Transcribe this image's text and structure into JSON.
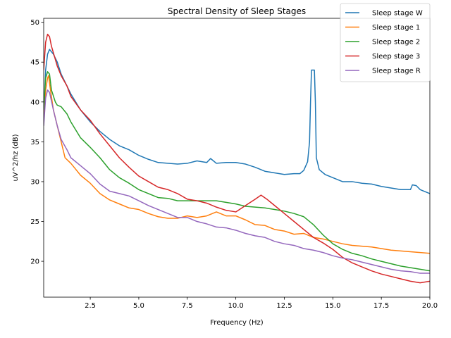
{
  "chart_data": {
    "type": "line",
    "title": "Spectral Density of Sleep Stages",
    "xlabel": "Frequency (Hz)",
    "ylabel": "uV^2/hz (dB)",
    "xlim": [
      0.1,
      20.0
    ],
    "ylim": [
      15.5,
      50.5
    ],
    "x_ticks": [
      2.5,
      5.0,
      7.5,
      10.0,
      12.5,
      15.0,
      17.5,
      20.0
    ],
    "x_tick_labels": [
      "2.5",
      "5.0",
      "7.5",
      "10.0",
      "12.5",
      "15.0",
      "17.5",
      "20.0"
    ],
    "y_ticks": [
      20,
      25,
      30,
      35,
      40,
      45,
      50
    ],
    "y_tick_labels": [
      "20",
      "25",
      "30",
      "35",
      "40",
      "45",
      "50"
    ],
    "grid": false,
    "legend_position": "top-right",
    "series": [
      {
        "name": "Sleep stage W",
        "color": "#1f77b4",
        "points": [
          [
            0.1,
            38.0
          ],
          [
            0.2,
            44.0
          ],
          [
            0.3,
            46.0
          ],
          [
            0.4,
            46.6
          ],
          [
            0.6,
            46.0
          ],
          [
            0.8,
            45.0
          ],
          [
            1.0,
            43.5
          ],
          [
            1.5,
            41.0
          ],
          [
            2.0,
            39.0
          ],
          [
            2.5,
            37.5
          ],
          [
            3.0,
            36.3
          ],
          [
            3.5,
            35.3
          ],
          [
            4.0,
            34.5
          ],
          [
            4.5,
            34.0
          ],
          [
            5.0,
            33.3
          ],
          [
            5.5,
            32.8
          ],
          [
            6.0,
            32.4
          ],
          [
            6.5,
            32.3
          ],
          [
            7.0,
            32.2
          ],
          [
            7.5,
            32.3
          ],
          [
            8.0,
            32.6
          ],
          [
            8.5,
            32.4
          ],
          [
            8.7,
            32.9
          ],
          [
            9.0,
            32.3
          ],
          [
            9.5,
            32.4
          ],
          [
            10.0,
            32.4
          ],
          [
            10.5,
            32.2
          ],
          [
            11.0,
            31.8
          ],
          [
            11.5,
            31.3
          ],
          [
            12.0,
            31.1
          ],
          [
            12.5,
            30.9
          ],
          [
            13.0,
            31.0
          ],
          [
            13.3,
            31.0
          ],
          [
            13.5,
            31.4
          ],
          [
            13.7,
            32.5
          ],
          [
            13.8,
            35.0
          ],
          [
            13.85,
            40.0
          ],
          [
            13.9,
            44.0
          ],
          [
            14.0,
            44.0
          ],
          [
            14.05,
            44.0
          ],
          [
            14.1,
            40.0
          ],
          [
            14.15,
            33.0
          ],
          [
            14.3,
            31.5
          ],
          [
            14.6,
            30.9
          ],
          [
            15.0,
            30.5
          ],
          [
            15.5,
            30.0
          ],
          [
            16.0,
            30.0
          ],
          [
            16.5,
            29.8
          ],
          [
            17.0,
            29.7
          ],
          [
            17.5,
            29.4
          ],
          [
            18.0,
            29.2
          ],
          [
            18.5,
            29.0
          ],
          [
            19.0,
            29.0
          ],
          [
            19.1,
            29.6
          ],
          [
            19.3,
            29.5
          ],
          [
            19.5,
            29.0
          ],
          [
            20.0,
            28.5
          ]
        ]
      },
      {
        "name": "Sleep stage 1",
        "color": "#ff7f0e",
        "points": [
          [
            0.1,
            38.0
          ],
          [
            0.2,
            41.5
          ],
          [
            0.3,
            43.0
          ],
          [
            0.35,
            43.3
          ],
          [
            0.45,
            41.5
          ],
          [
            0.6,
            39.0
          ],
          [
            0.8,
            37.0
          ],
          [
            1.0,
            35.0
          ],
          [
            1.2,
            33.0
          ],
          [
            1.5,
            32.3
          ],
          [
            1.7,
            31.7
          ],
          [
            2.0,
            30.8
          ],
          [
            2.5,
            29.8
          ],
          [
            3.0,
            28.5
          ],
          [
            3.5,
            27.7
          ],
          [
            4.0,
            27.2
          ],
          [
            4.5,
            26.7
          ],
          [
            5.0,
            26.5
          ],
          [
            5.5,
            26.0
          ],
          [
            6.0,
            25.6
          ],
          [
            6.5,
            25.4
          ],
          [
            7.0,
            25.4
          ],
          [
            7.5,
            25.7
          ],
          [
            8.0,
            25.5
          ],
          [
            8.5,
            25.7
          ],
          [
            9.0,
            26.2
          ],
          [
            9.5,
            25.7
          ],
          [
            10.0,
            25.7
          ],
          [
            10.5,
            25.2
          ],
          [
            11.0,
            24.6
          ],
          [
            11.5,
            24.5
          ],
          [
            12.0,
            24.0
          ],
          [
            12.5,
            23.8
          ],
          [
            13.0,
            23.4
          ],
          [
            13.5,
            23.5
          ],
          [
            14.0,
            23.0
          ],
          [
            14.5,
            22.8
          ],
          [
            15.0,
            22.5
          ],
          [
            15.5,
            22.2
          ],
          [
            16.0,
            22.0
          ],
          [
            16.5,
            21.9
          ],
          [
            17.0,
            21.8
          ],
          [
            17.5,
            21.6
          ],
          [
            18.0,
            21.4
          ],
          [
            18.5,
            21.3
          ],
          [
            19.0,
            21.2
          ],
          [
            19.5,
            21.1
          ],
          [
            20.0,
            21.0
          ]
        ]
      },
      {
        "name": "Sleep stage 2",
        "color": "#2ca02c",
        "points": [
          [
            0.1,
            39.0
          ],
          [
            0.2,
            43.0
          ],
          [
            0.3,
            43.8
          ],
          [
            0.4,
            43.5
          ],
          [
            0.5,
            41.5
          ],
          [
            0.7,
            40.0
          ],
          [
            0.8,
            39.6
          ],
          [
            1.0,
            39.4
          ],
          [
            1.3,
            38.5
          ],
          [
            1.5,
            37.5
          ],
          [
            2.0,
            35.5
          ],
          [
            2.5,
            34.3
          ],
          [
            3.0,
            33.0
          ],
          [
            3.5,
            31.5
          ],
          [
            4.0,
            30.5
          ],
          [
            4.5,
            29.8
          ],
          [
            5.0,
            29.0
          ],
          [
            5.5,
            28.5
          ],
          [
            6.0,
            28.0
          ],
          [
            6.5,
            27.9
          ],
          [
            7.0,
            27.6
          ],
          [
            7.5,
            27.6
          ],
          [
            8.0,
            27.6
          ],
          [
            8.5,
            27.6
          ],
          [
            9.0,
            27.6
          ],
          [
            9.5,
            27.4
          ],
          [
            10.0,
            27.2
          ],
          [
            10.5,
            26.9
          ],
          [
            11.0,
            26.8
          ],
          [
            11.5,
            26.7
          ],
          [
            12.0,
            26.5
          ],
          [
            12.5,
            26.3
          ],
          [
            13.0,
            26.0
          ],
          [
            13.5,
            25.6
          ],
          [
            14.0,
            24.6
          ],
          [
            14.5,
            23.3
          ],
          [
            15.0,
            22.2
          ],
          [
            15.5,
            21.5
          ],
          [
            16.0,
            21.0
          ],
          [
            16.5,
            20.7
          ],
          [
            17.0,
            20.3
          ],
          [
            17.5,
            20.0
          ],
          [
            18.0,
            19.7
          ],
          [
            18.5,
            19.4
          ],
          [
            19.0,
            19.2
          ],
          [
            19.5,
            19.0
          ],
          [
            20.0,
            18.8
          ]
        ]
      },
      {
        "name": "Sleep stage 3",
        "color": "#d62728",
        "points": [
          [
            0.1,
            44.0
          ],
          [
            0.2,
            47.5
          ],
          [
            0.3,
            48.5
          ],
          [
            0.4,
            48.2
          ],
          [
            0.5,
            47.0
          ],
          [
            0.8,
            44.5
          ],
          [
            1.0,
            43.3
          ],
          [
            1.3,
            42.0
          ],
          [
            1.5,
            40.7
          ],
          [
            2.0,
            39.0
          ],
          [
            2.5,
            37.7
          ],
          [
            3.0,
            36.0
          ],
          [
            3.5,
            34.5
          ],
          [
            4.0,
            33.0
          ],
          [
            4.5,
            31.8
          ],
          [
            5.0,
            30.7
          ],
          [
            5.5,
            30.0
          ],
          [
            6.0,
            29.3
          ],
          [
            6.5,
            29.0
          ],
          [
            7.0,
            28.5
          ],
          [
            7.5,
            27.8
          ],
          [
            8.0,
            27.6
          ],
          [
            8.5,
            27.3
          ],
          [
            9.0,
            26.8
          ],
          [
            9.5,
            26.4
          ],
          [
            10.0,
            26.2
          ],
          [
            10.5,
            27.0
          ],
          [
            11.0,
            27.8
          ],
          [
            11.3,
            28.3
          ],
          [
            11.6,
            27.8
          ],
          [
            12.0,
            27.0
          ],
          [
            12.5,
            26.0
          ],
          [
            13.0,
            25.0
          ],
          [
            13.5,
            24.0
          ],
          [
            14.0,
            23.0
          ],
          [
            14.5,
            22.3
          ],
          [
            15.0,
            21.5
          ],
          [
            15.5,
            20.5
          ],
          [
            16.0,
            19.8
          ],
          [
            16.5,
            19.3
          ],
          [
            17.0,
            18.8
          ],
          [
            17.5,
            18.4
          ],
          [
            18.0,
            18.1
          ],
          [
            18.5,
            17.8
          ],
          [
            19.0,
            17.5
          ],
          [
            19.5,
            17.3
          ],
          [
            20.0,
            17.5
          ]
        ]
      },
      {
        "name": "Sleep stage R",
        "color": "#9467bd",
        "points": [
          [
            0.1,
            37.0
          ],
          [
            0.2,
            40.5
          ],
          [
            0.3,
            41.5
          ],
          [
            0.4,
            41.2
          ],
          [
            0.6,
            39.0
          ],
          [
            0.8,
            37.0
          ],
          [
            1.0,
            35.3
          ],
          [
            1.3,
            34.0
          ],
          [
            1.5,
            33.0
          ],
          [
            2.0,
            32.0
          ],
          [
            2.5,
            31.0
          ],
          [
            3.0,
            29.7
          ],
          [
            3.5,
            28.8
          ],
          [
            4.0,
            28.5
          ],
          [
            4.5,
            28.2
          ],
          [
            5.0,
            27.6
          ],
          [
            5.5,
            27.0
          ],
          [
            6.0,
            26.5
          ],
          [
            6.5,
            26.0
          ],
          [
            7.0,
            25.5
          ],
          [
            7.5,
            25.5
          ],
          [
            8.0,
            25.0
          ],
          [
            8.5,
            24.7
          ],
          [
            9.0,
            24.3
          ],
          [
            9.5,
            24.2
          ],
          [
            10.0,
            23.9
          ],
          [
            10.5,
            23.5
          ],
          [
            11.0,
            23.2
          ],
          [
            11.5,
            23.0
          ],
          [
            12.0,
            22.5
          ],
          [
            12.5,
            22.2
          ],
          [
            13.0,
            22.0
          ],
          [
            13.5,
            21.6
          ],
          [
            14.0,
            21.4
          ],
          [
            14.5,
            21.1
          ],
          [
            15.0,
            20.7
          ],
          [
            15.5,
            20.4
          ],
          [
            16.0,
            20.2
          ],
          [
            16.5,
            19.9
          ],
          [
            17.0,
            19.6
          ],
          [
            17.5,
            19.3
          ],
          [
            18.0,
            19.0
          ],
          [
            18.5,
            18.8
          ],
          [
            19.0,
            18.7
          ],
          [
            19.5,
            18.5
          ],
          [
            20.0,
            18.5
          ]
        ]
      }
    ]
  }
}
